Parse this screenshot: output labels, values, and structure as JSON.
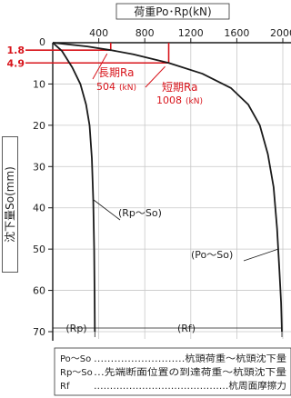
{
  "chart_data": {
    "type": "line",
    "title": "荷重Po･Rp(kN)",
    "xlabel": "荷重Po･Rp(kN)",
    "ylabel": "沈下量So(mm)",
    "xlim": [
      0,
      2000
    ],
    "ylim": [
      0,
      72
    ],
    "y_inverted": true,
    "x_axis_position": "top",
    "xticks": [
      "400",
      "800",
      "1200",
      "1600",
      "2000"
    ],
    "yticks": [
      "10",
      "20",
      "30",
      "40",
      "50",
      "60",
      "70"
    ],
    "red_yticks": [
      "1.8",
      "4.9"
    ],
    "grid": true,
    "series": [
      {
        "name": "Po～So",
        "color": "#1a1a1a",
        "x": [
          0,
          300,
          504,
          700,
          1008,
          1300,
          1550,
          1700,
          1800,
          1870,
          1920,
          1950,
          1970,
          1985,
          1990,
          1992
        ],
        "y": [
          0,
          0.9,
          1.8,
          2.8,
          4.9,
          7.5,
          11,
          15,
          20,
          27,
          35,
          45,
          55,
          63,
          68,
          70
        ]
      },
      {
        "name": "Rp～So",
        "color": "#1a1a1a",
        "x": [
          0,
          80,
          170,
          240,
          290,
          320,
          340,
          352,
          360,
          364,
          366
        ],
        "y": [
          0,
          2,
          6,
          10,
          15,
          20,
          28,
          38,
          50,
          62,
          70
        ]
      }
    ],
    "annotations": {
      "series_labels": [
        "(Rp～So)",
        "(Po～So)"
      ],
      "long_term": {
        "label": "長期Ra",
        "value": "504",
        "unit": "(kN)",
        "x": 504,
        "y": 1.8
      },
      "short_term": {
        "label": "短期Ra",
        "value": "1008",
        "unit": "(kN)",
        "x": 1008,
        "y": 4.9
      },
      "rp_span": "(Rp)",
      "rf_span": "(Rf)"
    },
    "legend": [
      {
        "key": "Po～So",
        "desc": "………………………杭頭荷重～杭頭沈下量"
      },
      {
        "key": "Rp～So",
        "desc": "…先端断面位置の到達荷重～杭頭沈下量"
      },
      {
        "key": "Rf",
        "desc": "……………………………………杭周面摩擦力"
      }
    ],
    "colors": {
      "axis": "#1a1a1a",
      "grid": "#c8c8c8",
      "highlight": "#d8141b"
    }
  }
}
